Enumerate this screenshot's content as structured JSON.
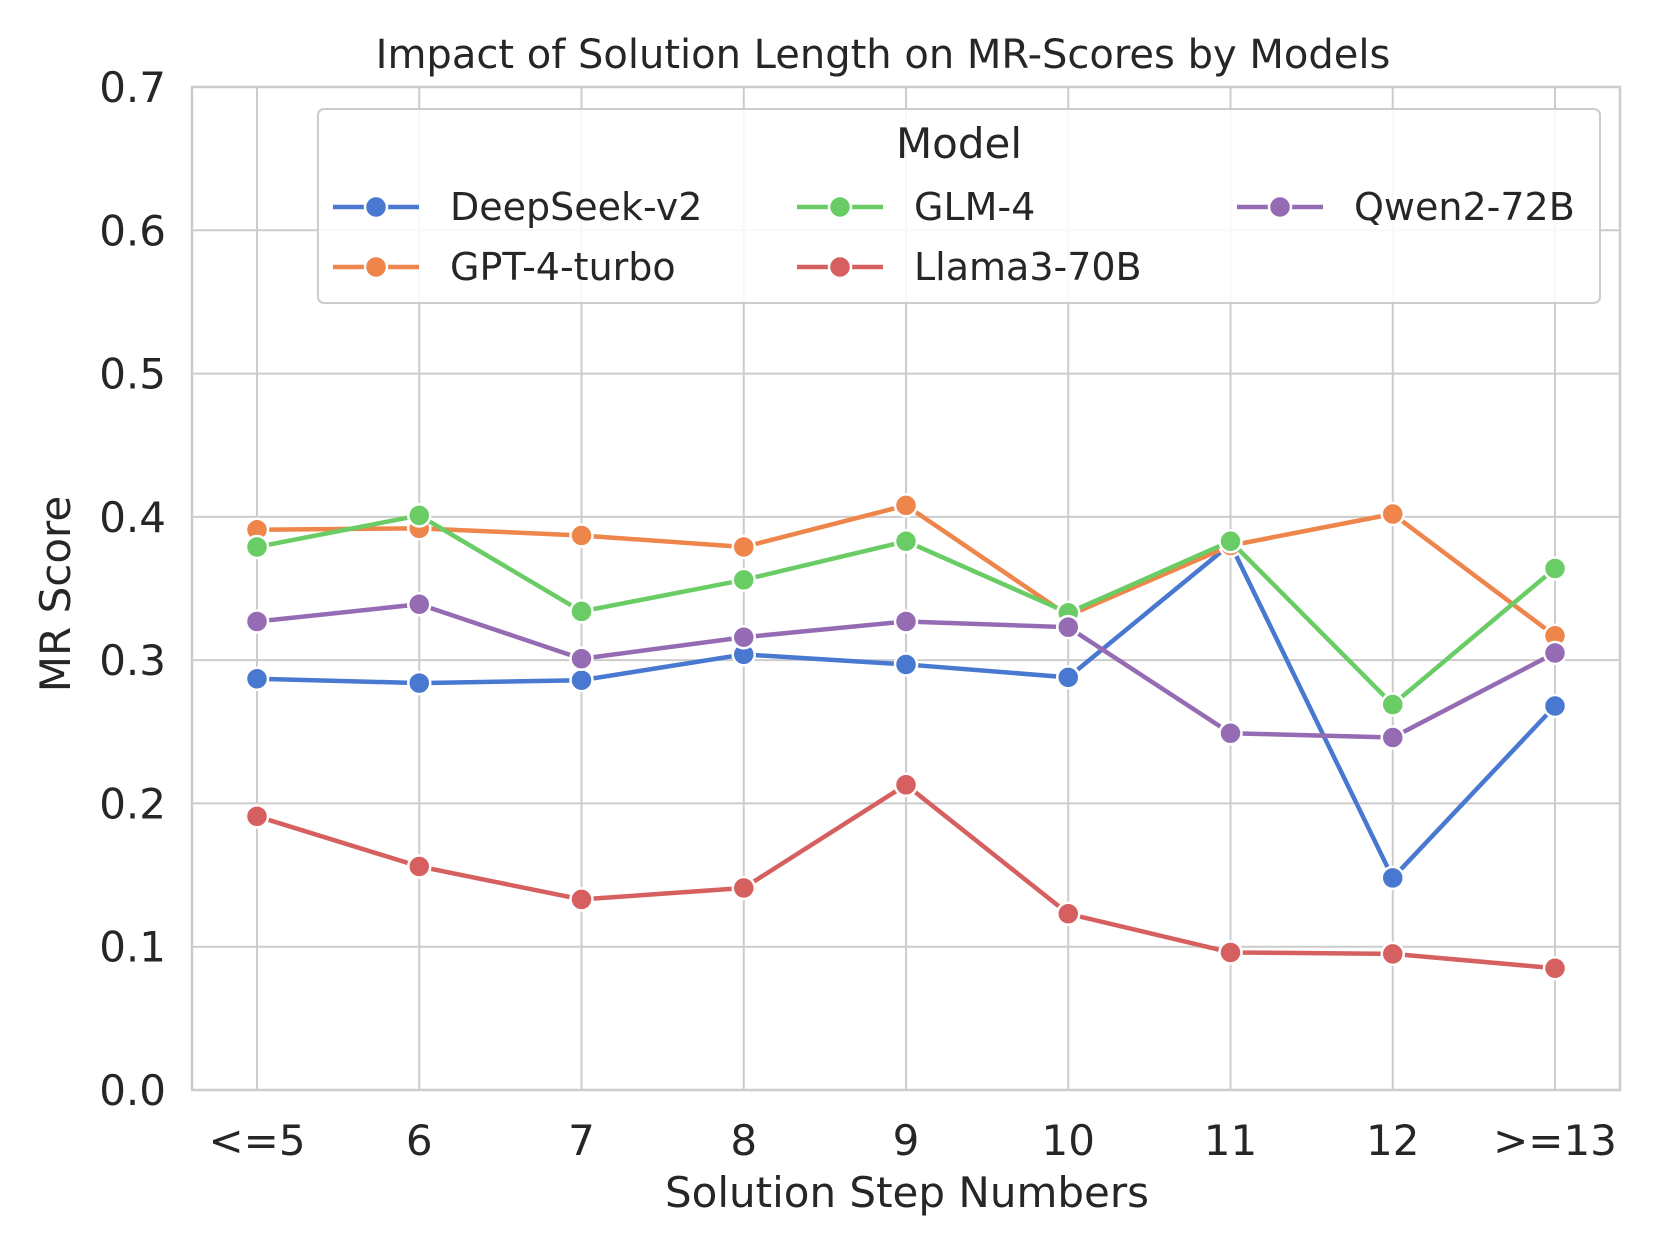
{
  "chart_data": {
    "type": "line",
    "title": "Impact of Solution Length on MR-Scores by Models",
    "xlabel": "Solution Step Numbers",
    "ylabel": "MR Score",
    "categories": [
      "<=5",
      "6",
      "7",
      "8",
      "9",
      "10",
      "11",
      "12",
      ">=13"
    ],
    "ylim": [
      0.0,
      0.7
    ],
    "yticks": [
      "0.0",
      "0.1",
      "0.2",
      "0.3",
      "0.4",
      "0.5",
      "0.6",
      "0.7"
    ],
    "grid": true,
    "legend": {
      "title": "Model",
      "placement": "upper-right",
      "columns": 3
    },
    "series": [
      {
        "name": "DeepSeek-v2",
        "color": "#4878d0",
        "values": [
          0.287,
          0.284,
          0.286,
          0.304,
          0.297,
          0.288,
          0.381,
          0.148,
          0.268
        ]
      },
      {
        "name": "GPT-4-turbo",
        "color": "#ee854a",
        "values": [
          0.391,
          0.392,
          0.387,
          0.379,
          0.408,
          0.331,
          0.38,
          0.402,
          0.317
        ]
      },
      {
        "name": "GLM-4",
        "color": "#6acc64",
        "values": [
          0.379,
          0.401,
          0.334,
          0.356,
          0.383,
          0.333,
          0.383,
          0.269,
          0.364
        ]
      },
      {
        "name": "Llama3-70B",
        "color": "#d65f5f",
        "values": [
          0.191,
          0.156,
          0.133,
          0.141,
          0.213,
          0.123,
          0.096,
          0.095,
          0.085
        ]
      },
      {
        "name": "Qwen2-72B",
        "color": "#956cb4",
        "values": [
          0.327,
          0.339,
          0.301,
          0.316,
          0.327,
          0.323,
          0.249,
          0.246,
          0.305
        ]
      }
    ]
  }
}
